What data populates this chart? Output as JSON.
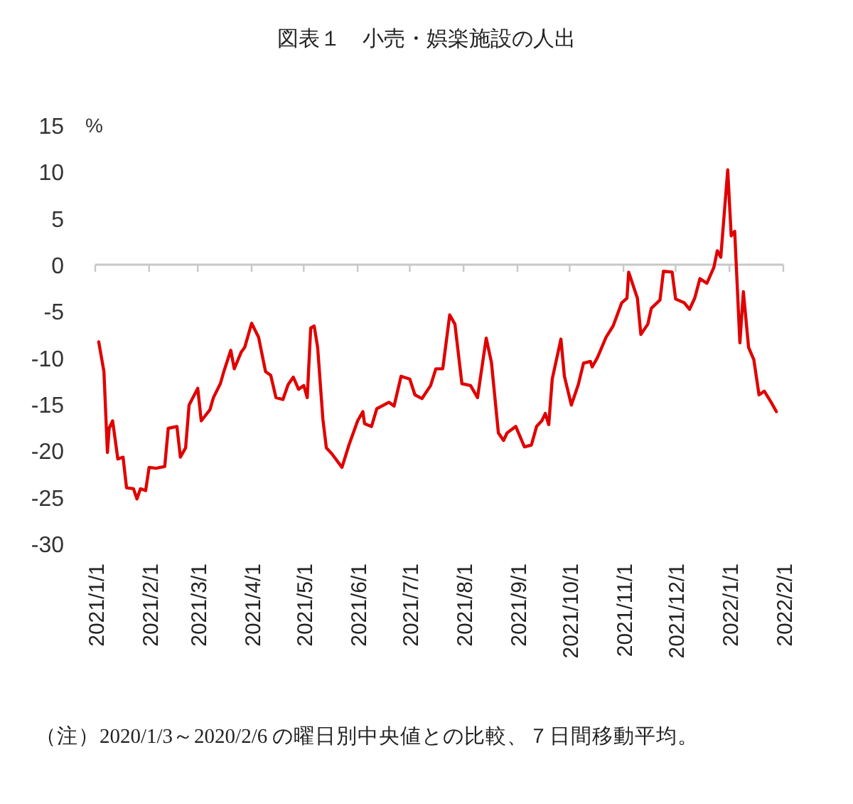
{
  "chart_data": {
    "type": "line",
    "title": "図表１　小売・娯楽施設の人出",
    "ylabel": "%",
    "annotations": [
      "（注）2020/1/3～2020/2/6 の曜日別中央値との比較、７日間移動平均。"
    ],
    "xlim": [
      "2021-01-01",
      "2022-02-01"
    ],
    "xticks": [
      {
        "value": "2021-01-01",
        "label": "2021/1/1"
      },
      {
        "value": "2021-02-01",
        "label": "2021/2/1"
      },
      {
        "value": "2021-03-01",
        "label": "2021/3/1"
      },
      {
        "value": "2021-04-01",
        "label": "2021/4/1"
      },
      {
        "value": "2021-05-01",
        "label": "2021/5/1"
      },
      {
        "value": "2021-06-01",
        "label": "2021/6/1"
      },
      {
        "value": "2021-07-01",
        "label": "2021/7/1"
      },
      {
        "value": "2021-08-01",
        "label": "2021/8/1"
      },
      {
        "value": "2021-09-01",
        "label": "2021/9/1"
      },
      {
        "value": "2021-10-01",
        "label": "2021/10/1"
      },
      {
        "value": "2021-11-01",
        "label": "2021/11/1"
      },
      {
        "value": "2021-12-01",
        "label": "2021/12/1"
      },
      {
        "value": "2022-01-01",
        "label": "2022/1/1"
      },
      {
        "value": "2022-02-01",
        "label": "2022/2/1"
      }
    ],
    "ylim": [
      -30,
      15
    ],
    "yticks": [
      -30,
      -25,
      -20,
      -15,
      -10,
      -5,
      0,
      5,
      10,
      15
    ],
    "x": [
      "2021-01-03",
      "2021-01-06",
      "2021-01-08",
      "2021-01-09",
      "2021-01-11",
      "2021-01-14",
      "2021-01-17",
      "2021-01-19",
      "2021-01-23",
      "2021-01-25",
      "2021-01-27",
      "2021-01-30",
      "2021-02-01",
      "2021-02-05",
      "2021-02-10",
      "2021-02-12",
      "2021-02-17",
      "2021-02-19",
      "2021-02-22",
      "2021-02-24",
      "2021-03-01",
      "2021-03-03",
      "2021-03-08",
      "2021-03-10",
      "2021-03-14",
      "2021-03-16",
      "2021-03-20",
      "2021-03-22",
      "2021-03-26",
      "2021-03-28",
      "2021-04-01",
      "2021-04-05",
      "2021-04-09",
      "2021-04-12",
      "2021-04-15",
      "2021-04-19",
      "2021-04-22",
      "2021-04-25",
      "2021-04-28",
      "2021-05-01",
      "2021-05-03",
      "2021-05-05",
      "2021-05-07",
      "2021-05-09",
      "2021-05-12",
      "2021-05-14",
      "2021-05-17",
      "2021-05-23",
      "2021-05-27",
      "2021-06-01",
      "2021-06-04",
      "2021-06-05",
      "2021-06-09",
      "2021-06-12",
      "2021-06-19",
      "2021-06-22",
      "2021-06-26",
      "2021-07-01",
      "2021-07-04",
      "2021-07-08",
      "2021-07-13",
      "2021-07-16",
      "2021-07-20",
      "2021-07-24",
      "2021-07-27",
      "2021-07-31",
      "2021-08-05",
      "2021-08-09",
      "2021-08-14",
      "2021-08-17",
      "2021-08-21",
      "2021-08-24",
      "2021-08-26",
      "2021-08-31",
      "2021-09-05",
      "2021-09-09",
      "2021-09-12",
      "2021-09-15",
      "2021-09-17",
      "2021-09-19",
      "2021-09-21",
      "2021-09-26",
      "2021-09-28",
      "2021-10-02",
      "2021-10-06",
      "2021-10-09",
      "2021-10-13",
      "2021-10-14",
      "2021-10-17",
      "2021-10-22",
      "2021-10-26",
      "2021-10-28",
      "2021-10-31",
      "2021-11-03",
      "2021-11-04",
      "2021-11-09",
      "2021-11-11",
      "2021-11-15",
      "2021-11-17",
      "2021-11-22",
      "2021-11-24",
      "2021-11-29",
      "2021-12-01",
      "2021-12-06",
      "2021-12-09",
      "2021-12-12",
      "2021-12-15",
      "2021-12-19",
      "2021-12-23",
      "2021-12-25",
      "2021-12-27",
      "2021-12-31",
      "2022-01-02",
      "2022-01-04",
      "2022-01-07",
      "2022-01-09",
      "2022-01-12",
      "2022-01-15",
      "2022-01-18",
      "2022-01-21",
      "2022-01-25",
      "2022-01-28"
    ],
    "series": [
      {
        "color": "#e00000",
        "values": [
          -8.3,
          -11.5,
          -20.2,
          -17.6,
          -16.8,
          -20.9,
          -20.7,
          -24.0,
          -24.1,
          -25.2,
          -24.1,
          -24.3,
          -21.8,
          -21.9,
          -21.7,
          -17.6,
          -17.4,
          -20.7,
          -19.7,
          -15.1,
          -13.3,
          -16.8,
          -15.6,
          -14.3,
          -12.8,
          -11.5,
          -9.2,
          -11.2,
          -9.4,
          -8.9,
          -6.3,
          -7.8,
          -11.5,
          -11.9,
          -14.3,
          -14.5,
          -12.9,
          -12.1,
          -13.4,
          -13.0,
          -14.3,
          -6.8,
          -6.6,
          -8.9,
          -16.6,
          -19.7,
          -20.3,
          -21.8,
          -19.4,
          -16.8,
          -15.8,
          -17.1,
          -17.4,
          -15.5,
          -14.8,
          -15.2,
          -12.0,
          -12.3,
          -14.0,
          -14.4,
          -13.0,
          -11.2,
          -11.2,
          -5.4,
          -6.4,
          -12.8,
          -13.0,
          -14.3,
          -7.9,
          -10.5,
          -18.1,
          -18.9,
          -18.1,
          -17.4,
          -19.6,
          -19.4,
          -17.4,
          -16.8,
          -16.0,
          -17.2,
          -12.3,
          -8.0,
          -12.0,
          -15.1,
          -12.9,
          -10.6,
          -10.4,
          -11.0,
          -10.0,
          -7.8,
          -6.6,
          -5.6,
          -4.1,
          -3.6,
          -0.8,
          -3.6,
          -7.5,
          -6.4,
          -4.7,
          -3.8,
          -0.7,
          -0.8,
          -3.7,
          -4.1,
          -4.8,
          -3.6,
          -1.5,
          -2.0,
          -0.3,
          1.5,
          0.8,
          10.2,
          3.1,
          3.6,
          -8.4,
          -2.9,
          -8.9,
          -10.2,
          -14.0,
          -13.6,
          -14.8,
          -15.8
        ]
      }
    ]
  }
}
